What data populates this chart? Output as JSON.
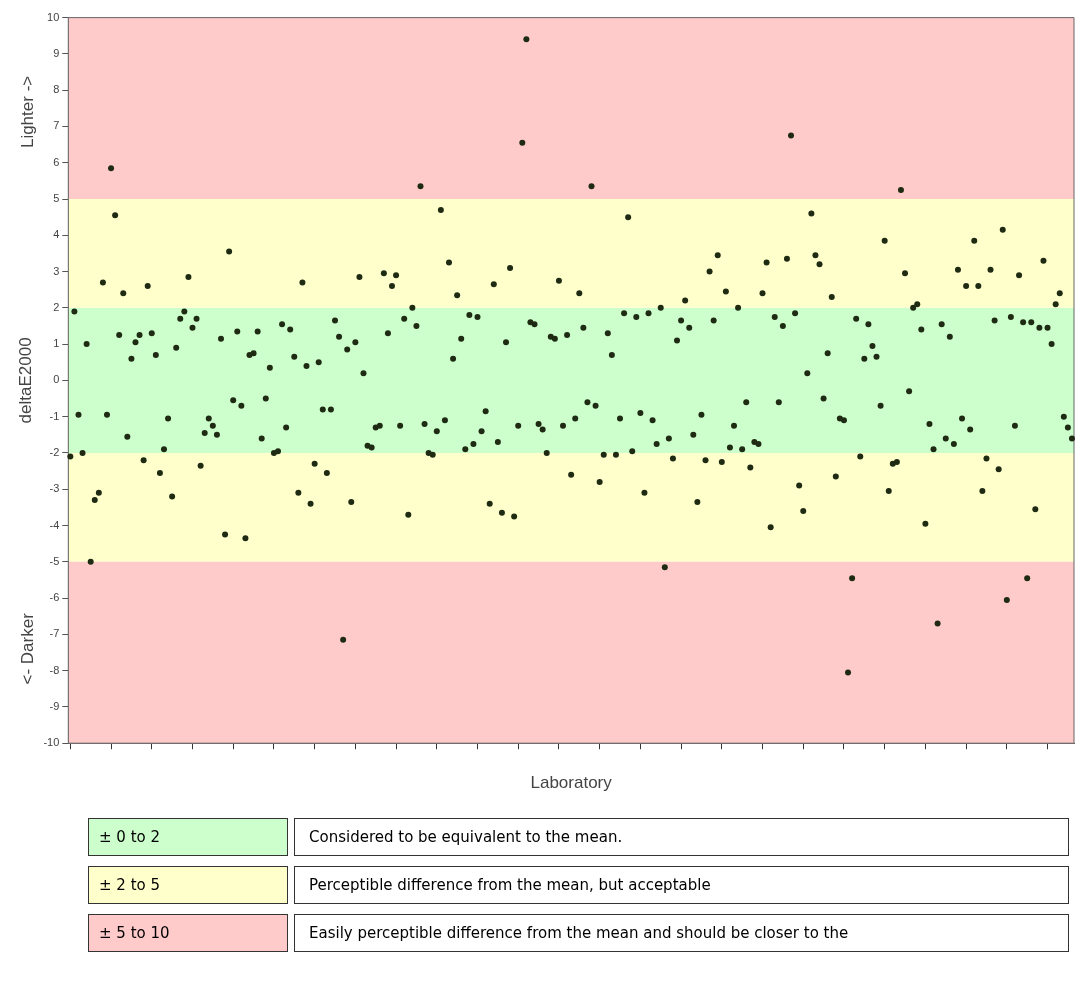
{
  "chart_data": {
    "type": "scatter",
    "xlabel": "Laboratory",
    "ylabel": "deltaE2000",
    "ylim": [
      -10,
      10
    ],
    "yticks": [
      -10,
      -9,
      -8,
      -7,
      -6,
      -5,
      -4,
      -3,
      -2,
      -1,
      0,
      1,
      2,
      3,
      4,
      5,
      6,
      7,
      8,
      9,
      10
    ],
    "grid": false,
    "legend": false,
    "marker": "circle",
    "categories": [
      null,
      null,
      null,
      null,
      null,
      null,
      null,
      null,
      null,
      null,
      null,
      null,
      null,
      null,
      null,
      null,
      null,
      null,
      null,
      null,
      null,
      null,
      null,
      null,
      null,
      null,
      null,
      null,
      null,
      null,
      null,
      null,
      null,
      null,
      null,
      null,
      null,
      null,
      null,
      null,
      null,
      null,
      null,
      null,
      null,
      null,
      null,
      null,
      null,
      null,
      null,
      null,
      null,
      null,
      null,
      null,
      null,
      null,
      null,
      null,
      null,
      null,
      null,
      null,
      null,
      null,
      null,
      null,
      null,
      null,
      null,
      null,
      null,
      null,
      null,
      null,
      null,
      null,
      null,
      null,
      null,
      null,
      null,
      null,
      null,
      null,
      null,
      null,
      null,
      null,
      null,
      null,
      null,
      null,
      null,
      null,
      null,
      null,
      null,
      null,
      null,
      null,
      null,
      null,
      null,
      null,
      null,
      null,
      null,
      null,
      null,
      null,
      null,
      null,
      null,
      null,
      null,
      null,
      null,
      null,
      null,
      null,
      null,
      null,
      null,
      null,
      null,
      null,
      null,
      null,
      null,
      null,
      null,
      null,
      null,
      null,
      null,
      null,
      null,
      null,
      null,
      null,
      null,
      null,
      null,
      null,
      null,
      null,
      null,
      null,
      null,
      null,
      null,
      null,
      null,
      null,
      null,
      null,
      null,
      null,
      null,
      null,
      null,
      null,
      null,
      null,
      null,
      null,
      null,
      null,
      null,
      null,
      null,
      null,
      null,
      null,
      null,
      null,
      null,
      null,
      null,
      null,
      null,
      null,
      null,
      null,
      null,
      null,
      null,
      null,
      null,
      null,
      null,
      null,
      null,
      null,
      null,
      null,
      null,
      null,
      null,
      null,
      null,
      null,
      null,
      null,
      null,
      null,
      null,
      null,
      null,
      null,
      null,
      null,
      null,
      null,
      null,
      null,
      null,
      null,
      null,
      null,
      null,
      null,
      null,
      null,
      null,
      null,
      null,
      null,
      null,
      null,
      null,
      null,
      null,
      null,
      null,
      null,
      null,
      null,
      null,
      null,
      null,
      null,
      null,
      null,
      null
    ],
    "series": [
      {
        "color": "#1e2a12",
        "values": [
          -2.1,
          1.9,
          -0.95,
          -2.0,
          1.0,
          -5.0,
          -3.3,
          -3.1,
          2.7,
          -0.95,
          5.85,
          4.55,
          1.25,
          2.4,
          -1.55,
          0.6,
          1.05,
          1.25,
          -2.2,
          2.6,
          1.3,
          0.7,
          -2.55,
          -1.9,
          -1.05,
          -3.2,
          0.9,
          1.7,
          1.9,
          2.85,
          1.45,
          1.7,
          -2.35,
          -1.45,
          -1.05,
          -1.25,
          -1.5,
          1.15,
          -4.25,
          3.55,
          -0.55,
          1.35,
          -0.7,
          -4.35,
          0.7,
          0.75,
          1.35,
          -1.6,
          -0.5,
          0.35,
          -2.0,
          -1.95,
          1.55,
          -1.3,
          1.4,
          0.65,
          -3.1,
          2.7,
          0.4,
          -3.4,
          -2.3,
          0.5,
          -0.8,
          -2.55,
          -0.8,
          1.65,
          1.2,
          -7.15,
          0.85,
          -3.35,
          1.05,
          2.85,
          0.2,
          -1.8,
          -1.85,
          -1.3,
          -1.25,
          2.95,
          1.3,
          2.6,
          2.9,
          -1.25,
          1.7,
          -3.7,
          2.0,
          1.5,
          5.35,
          -1.2,
          -2.0,
          -2.05,
          -1.4,
          4.7,
          -1.1,
          3.25,
          0.6,
          2.35,
          1.15,
          -1.9,
          1.8,
          -1.75,
          1.75,
          -1.4,
          -0.85,
          -3.4,
          2.65,
          -1.7,
          -3.65,
          1.05,
          3.1,
          -3.75,
          -1.25,
          6.55,
          9.4,
          1.6,
          1.55,
          -1.2,
          -1.35,
          -2.0,
          1.2,
          1.15,
          2.75,
          -1.25,
          1.25,
          -2.6,
          -1.05,
          2.4,
          1.45,
          -0.6,
          5.35,
          -0.7,
          -2.8,
          -2.05,
          1.3,
          0.7,
          -2.05,
          -1.05,
          1.85,
          4.5,
          -1.95,
          1.75,
          -0.9,
          -3.1,
          1.85,
          -1.1,
          -1.75,
          2.0,
          -5.15,
          -1.6,
          -2.15,
          1.1,
          1.65,
          2.2,
          1.45,
          -1.5,
          -3.35,
          -0.95,
          -2.2,
          3.0,
          1.65,
          3.45,
          -2.25,
          2.45,
          -1.85,
          -1.25,
          2.0,
          -1.9,
          -0.6,
          -2.4,
          -1.7,
          -1.75,
          2.4,
          3.25,
          -4.05,
          1.75,
          -0.6,
          1.5,
          3.35,
          6.75,
          1.85,
          -2.9,
          -3.6,
          0.2,
          4.6,
          3.45,
          3.2,
          -0.5,
          0.75,
          2.3,
          -2.65,
          -1.05,
          -1.1,
          -8.05,
          -5.45,
          1.7,
          -2.1,
          0.6,
          1.55,
          0.95,
          0.65,
          -0.7,
          3.85,
          -3.05,
          -2.3,
          -2.25,
          5.25,
          2.95,
          -0.3,
          2.0,
          2.1,
          1.4,
          -3.95,
          -1.2,
          -1.9,
          -6.7,
          1.55,
          -1.6,
          1.2,
          -1.75,
          3.05,
          -1.05,
          2.6,
          -1.35,
          3.85,
          2.6,
          -3.05,
          -2.15,
          3.05,
          1.65,
          -2.45,
          4.15,
          -6.05,
          1.75,
          -1.25,
          2.9,
          1.6,
          -5.45,
          1.6,
          -3.55,
          1.45,
          3.3,
          1.45,
          1.0,
          2.1,
          2.4,
          -1.0,
          -1.3,
          -1.6
        ]
      }
    ],
    "bands": [
      {
        "axis": "y",
        "from": -2,
        "to": 2,
        "color": "#ccffcc"
      },
      {
        "axis": "y",
        "from": 2,
        "to": 5,
        "color": "#ffffcc"
      },
      {
        "axis": "y",
        "from": -5,
        "to": -2,
        "color": "#ffffcc"
      },
      {
        "axis": "y",
        "from": 5,
        "to": 10,
        "color": "#ffcaca"
      },
      {
        "axis": "y",
        "from": -10,
        "to": -5,
        "color": "#ffcaca"
      }
    ],
    "annotations": [
      "Lighter ->",
      "<- Darker",
      "± 0 to 2",
      "Considered to be equivalent to the mean.",
      "± 2 to 5",
      "Perceptible difference from the mean, but acceptable",
      "± 5 to 10",
      "Easily perceptible difference from the mean and should be closer to the"
    ]
  }
}
